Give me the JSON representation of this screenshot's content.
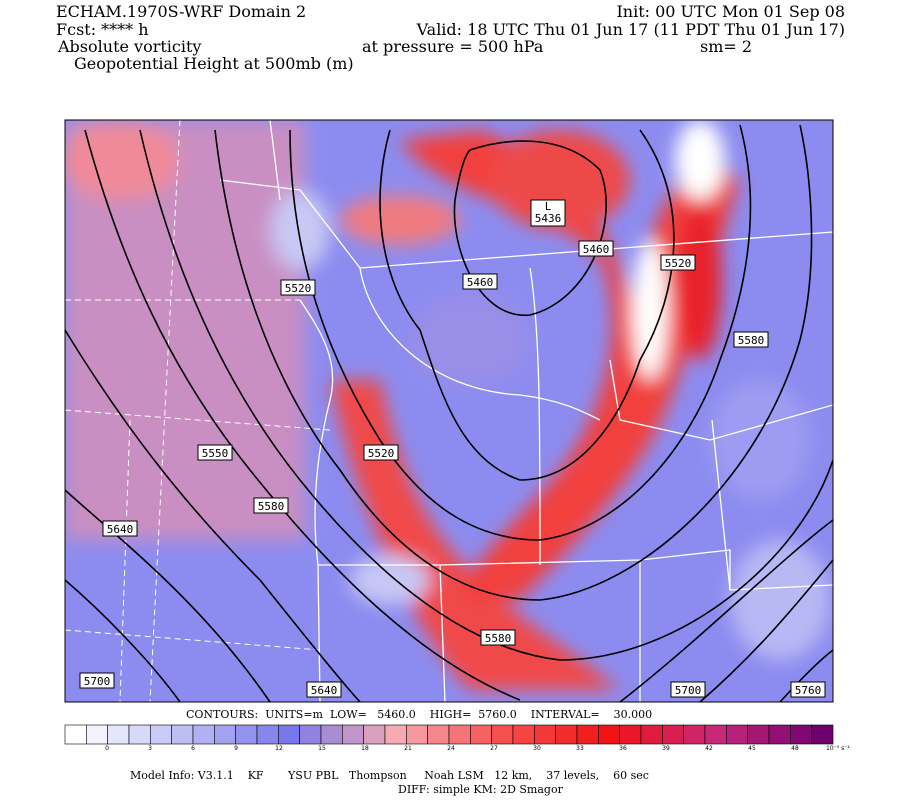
{
  "header": {
    "left": [
      "ECHAM.1970S-WRF Domain 2",
      "Fcst: **** h",
      "Absolute vorticity",
      "Geopotential Height at 500mb (m)"
    ],
    "init": "Init: 00 UTC Mon 01 Sep 08",
    "valid": "Valid: 18 UTC Thu 01 Jun 17 (11 PDT Thu 01 Jun 17)",
    "pressure": "at pressure =  500 hPa",
    "smoothing": "sm= 2"
  },
  "map": {
    "low_marker": "L",
    "contour_labels": [
      "5436",
      "5460",
      "5460",
      "5520",
      "5520",
      "5580",
      "5520",
      "5550",
      "5580",
      "5640",
      "5580",
      "5640",
      "5700",
      "5700",
      "5760"
    ]
  },
  "colorbar": {
    "labels": [
      "0",
      "3",
      "6",
      "9",
      "12",
      "15",
      "18",
      "21",
      "24",
      "27",
      "30",
      "33",
      "36",
      "39",
      "42",
      "45",
      "48"
    ],
    "unit": "10⁻⁵ s⁻¹"
  },
  "footer": {
    "contours": "CONTOURS:  UNITS=m  LOW=   5460.0    HIGH=  5760.0    INTERVAL=    30.000",
    "model_info": "Model Info: V3.1.1    KF       YSU PBL   Thompson     Noah LSM   12 km,    37 levels,    60 sec",
    "diff": "DIFF: simple KM: 2D Smagor"
  }
}
